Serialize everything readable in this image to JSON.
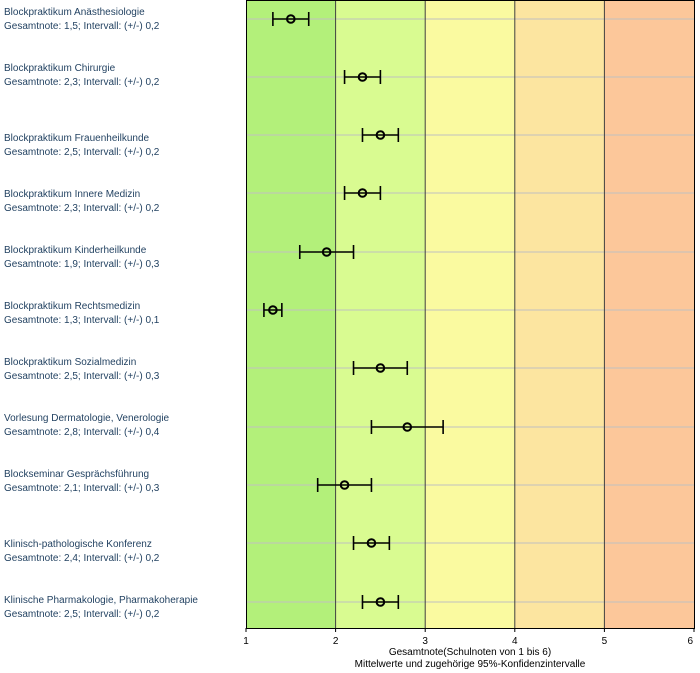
{
  "chart_data": {
    "type": "scatter",
    "orientation": "horizontal",
    "xlim": [
      1,
      6
    ],
    "x_ticks": [
      "1",
      "2",
      "3",
      "4",
      "5",
      "6"
    ],
    "xlabel": "Gesamtnote(Schulnoten von 1 bis 6)",
    "xlabel2": "Mittelwerte und zugehörige 95%-Konfidenzintervalle",
    "grid": "horizontal lines at each item",
    "background_bands": [
      {
        "from": 1,
        "to": 2,
        "color": "#b3f07a"
      },
      {
        "from": 2,
        "to": 3,
        "color": "#d9fb91"
      },
      {
        "from": 3,
        "to": 4,
        "color": "#fafaa0"
      },
      {
        "from": 4,
        "to": 5,
        "color": "#fce5a0"
      },
      {
        "from": 5,
        "to": 6,
        "color": "#fcc79a"
      }
    ],
    "items": [
      {
        "name": "Blockpraktikum Anästhesiologie",
        "detail": "Gesamtnote: 1,5;  Intervall: (+/-) 0,2",
        "mean": 1.5,
        "ci": 0.2
      },
      {
        "name": "Blockpraktikum Chirurgie",
        "detail": "Gesamtnote: 2,3;  Intervall: (+/-) 0,2",
        "mean": 2.3,
        "ci": 0.2
      },
      {
        "name": "Blockpraktikum Frauenheilkunde",
        "detail": "Gesamtnote: 2,5;  Intervall: (+/-) 0,2",
        "mean": 2.5,
        "ci": 0.2
      },
      {
        "name": "Blockpraktikum Innere Medizin",
        "detail": "Gesamtnote: 2,3;  Intervall: (+/-) 0,2",
        "mean": 2.3,
        "ci": 0.2
      },
      {
        "name": "Blockpraktikum Kinderheilkunde",
        "detail": "Gesamtnote: 1,9;  Intervall: (+/-) 0,3",
        "mean": 1.9,
        "ci": 0.3
      },
      {
        "name": "Blockpraktikum Rechtsmedizin",
        "detail": "Gesamtnote: 1,3;  Intervall: (+/-) 0,1",
        "mean": 1.3,
        "ci": 0.1
      },
      {
        "name": "Blockpraktikum Sozialmedizin",
        "detail": "Gesamtnote: 2,5;  Intervall: (+/-) 0,3",
        "mean": 2.5,
        "ci": 0.3
      },
      {
        "name": "Vorlesung Dermatologie, Venerologie",
        "detail": "Gesamtnote: 2,8;  Intervall: (+/-) 0,4",
        "mean": 2.8,
        "ci": 0.4
      },
      {
        "name": "Blockseminar Gesprächsführung",
        "detail": "Gesamtnote: 2,1;  Intervall: (+/-) 0,3",
        "mean": 2.1,
        "ci": 0.3
      },
      {
        "name": "Klinisch-pathologische Konferenz",
        "detail": "Gesamtnote: 2,4;  Intervall: (+/-) 0,2",
        "mean": 2.4,
        "ci": 0.2
      },
      {
        "name": "Klinische Pharmakologie, Pharmakoherapie",
        "detail": "Gesamtnote: 2,5;  Intervall: (+/-) 0,2",
        "mean": 2.5,
        "ci": 0.2
      }
    ]
  }
}
